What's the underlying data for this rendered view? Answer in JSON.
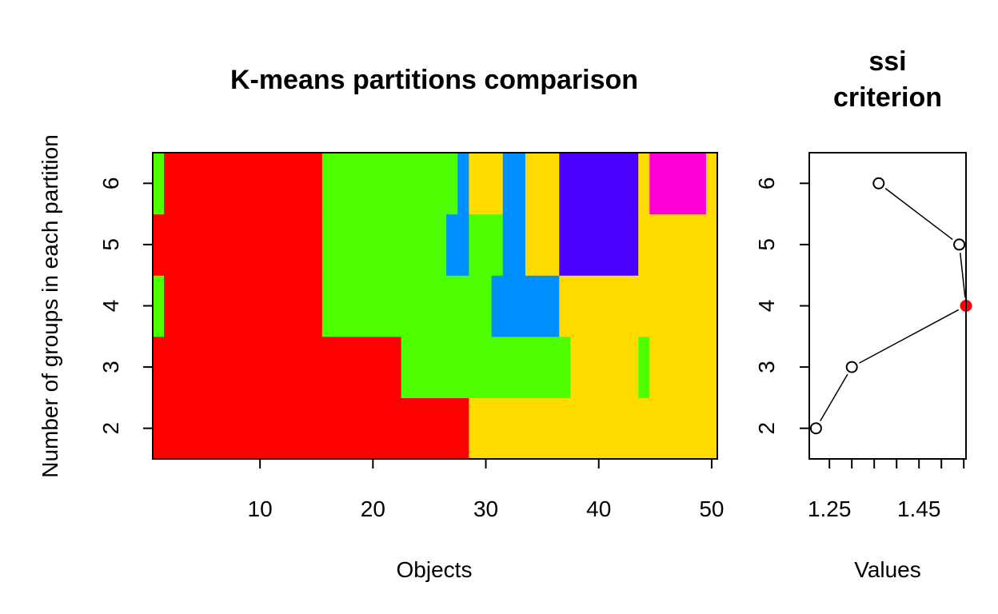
{
  "chart_data": [
    {
      "type": "heatmap",
      "title": "K-means partitions comparison",
      "xlabel": "Objects",
      "ylabel": "Number of groups in each partition",
      "xlim": [
        0.5,
        50.5
      ],
      "ylim": [
        1.5,
        6.5
      ],
      "x_ticks": [
        10,
        20,
        30,
        40,
        50
      ],
      "y_ticks": [
        2,
        3,
        4,
        5,
        6
      ],
      "grid": false,
      "colors": [
        "#FF0000",
        "#4DFF00",
        "#FFDB00",
        "#0090FF",
        "#4900FF",
        "#FF00DB"
      ],
      "rows": [
        {
          "k": 2,
          "segments": [
            {
              "from": 1,
              "to": 28,
              "cluster": 0
            },
            {
              "from": 29,
              "to": 50,
              "cluster": 2
            }
          ]
        },
        {
          "k": 3,
          "segments": [
            {
              "from": 1,
              "to": 22,
              "cluster": 0
            },
            {
              "from": 23,
              "to": 37,
              "cluster": 1
            },
            {
              "from": 38,
              "to": 43,
              "cluster": 2
            },
            {
              "from": 44,
              "to": 44,
              "cluster": 1
            },
            {
              "from": 45,
              "to": 50,
              "cluster": 2
            }
          ]
        },
        {
          "k": 4,
          "segments": [
            {
              "from": 1,
              "to": 1,
              "cluster": 1
            },
            {
              "from": 2,
              "to": 15,
              "cluster": 0
            },
            {
              "from": 16,
              "to": 30,
              "cluster": 1
            },
            {
              "from": 31,
              "to": 36,
              "cluster": 3
            },
            {
              "from": 37,
              "to": 50,
              "cluster": 2
            }
          ]
        },
        {
          "k": 5,
          "segments": [
            {
              "from": 1,
              "to": 15,
              "cluster": 0
            },
            {
              "from": 16,
              "to": 26,
              "cluster": 1
            },
            {
              "from": 27,
              "to": 28,
              "cluster": 3
            },
            {
              "from": 29,
              "to": 31,
              "cluster": 1
            },
            {
              "from": 32,
              "to": 33,
              "cluster": 3
            },
            {
              "from": 34,
              "to": 36,
              "cluster": 2
            },
            {
              "from": 37,
              "to": 43,
              "cluster": 4
            },
            {
              "from": 44,
              "to": 50,
              "cluster": 2
            }
          ]
        },
        {
          "k": 6,
          "segments": [
            {
              "from": 1,
              "to": 1,
              "cluster": 1
            },
            {
              "from": 2,
              "to": 15,
              "cluster": 0
            },
            {
              "from": 16,
              "to": 27,
              "cluster": 1
            },
            {
              "from": 28,
              "to": 28,
              "cluster": 3
            },
            {
              "from": 29,
              "to": 31,
              "cluster": 2
            },
            {
              "from": 32,
              "to": 33,
              "cluster": 3
            },
            {
              "from": 34,
              "to": 36,
              "cluster": 2
            },
            {
              "from": 37,
              "to": 43,
              "cluster": 4
            },
            {
              "from": 44,
              "to": 44,
              "cluster": 2
            },
            {
              "from": 45,
              "to": 49,
              "cluster": 5
            },
            {
              "from": 50,
              "to": 50,
              "cluster": 2
            }
          ]
        }
      ]
    },
    {
      "type": "line",
      "title": "ssi\ncriterion",
      "xlabel": "Values",
      "ylabel": "",
      "xlim": [
        1.205,
        1.555
      ],
      "ylim": [
        1.5,
        6.5
      ],
      "x_ticks": [
        1.25,
        1.3,
        1.35,
        1.4,
        1.45,
        1.5,
        1.55
      ],
      "x_tick_labels": [
        "1.25",
        "",
        "",
        "",
        "1.45",
        "",
        ""
      ],
      "y_ticks": [
        2,
        3,
        4,
        5,
        6
      ],
      "grid": false,
      "points": [
        {
          "k": 2,
          "value": 1.22
        },
        {
          "k": 3,
          "value": 1.3
        },
        {
          "k": 4,
          "value": 1.555
        },
        {
          "k": 5,
          "value": 1.54
        },
        {
          "k": 6,
          "value": 1.36
        }
      ],
      "best_k": 4,
      "best_color": "#FF0000"
    }
  ]
}
